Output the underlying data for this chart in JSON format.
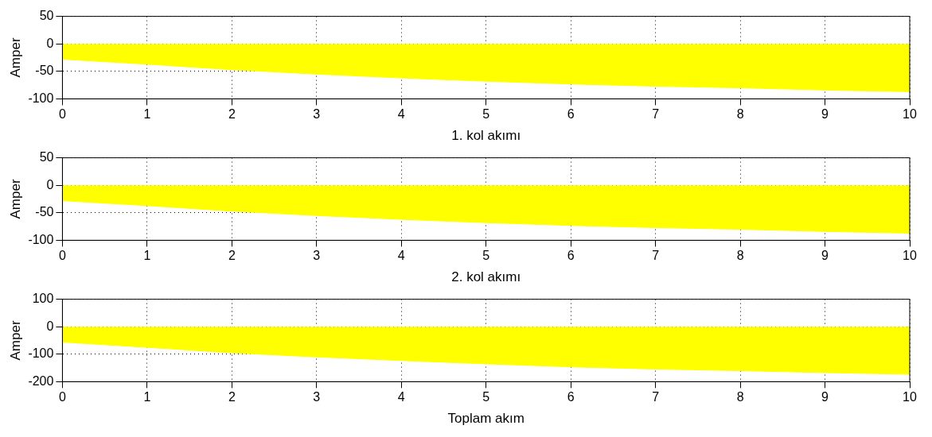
{
  "chart_data": [
    {
      "type": "area",
      "xlabel": "1. kol akımı",
      "ylabel": "Amper",
      "x": [
        0,
        1,
        2,
        3,
        4,
        5,
        6,
        7,
        8,
        9,
        10
      ],
      "series": [
        {
          "color": "#ffff00",
          "values": [
            -28,
            -37,
            -47,
            -55,
            -62,
            -68,
            -73,
            -77,
            -80,
            -84,
            -87
          ]
        }
      ],
      "xlim": [
        0,
        10
      ],
      "xticks": [
        0,
        1,
        2,
        3,
        4,
        5,
        6,
        7,
        8,
        9,
        10
      ],
      "ylim": [
        -100,
        50
      ],
      "yticks": [
        -100,
        -50,
        0,
        50
      ],
      "grid": true
    },
    {
      "type": "area",
      "xlabel": "2. kol akımı",
      "ylabel": "Amper",
      "x": [
        0,
        1,
        2,
        3,
        4,
        5,
        6,
        7,
        8,
        9,
        10
      ],
      "series": [
        {
          "color": "#ffff00",
          "values": [
            -28,
            -37,
            -47,
            -55,
            -62,
            -68,
            -73,
            -77,
            -80,
            -84,
            -87
          ]
        }
      ],
      "xlim": [
        0,
        10
      ],
      "xticks": [
        0,
        1,
        2,
        3,
        4,
        5,
        6,
        7,
        8,
        9,
        10
      ],
      "ylim": [
        -100,
        50
      ],
      "yticks": [
        -100,
        -50,
        0,
        50
      ],
      "grid": true
    },
    {
      "type": "area",
      "xlabel": "Toplam akım",
      "ylabel": "Amper",
      "x": [
        0,
        1,
        2,
        3,
        4,
        5,
        6,
        7,
        8,
        9,
        10
      ],
      "series": [
        {
          "color": "#ffff00",
          "values": [
            -56,
            -75,
            -95,
            -110,
            -123,
            -135,
            -146,
            -154,
            -160,
            -167,
            -173
          ]
        }
      ],
      "xlim": [
        0,
        10
      ],
      "xticks": [
        0,
        1,
        2,
        3,
        4,
        5,
        6,
        7,
        8,
        9,
        10
      ],
      "ylim": [
        -200,
        100
      ],
      "yticks": [
        -200,
        -100,
        0,
        100
      ],
      "grid": true
    }
  ]
}
